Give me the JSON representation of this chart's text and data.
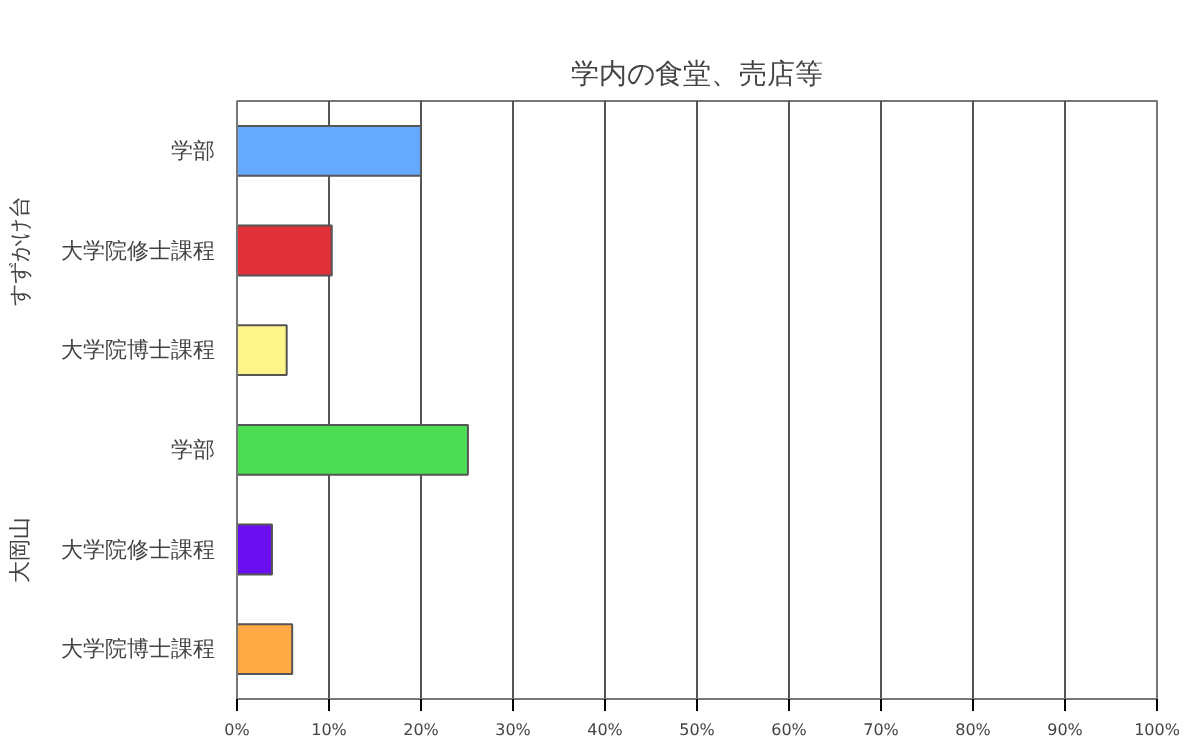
{
  "chart_data": {
    "type": "bar",
    "orientation": "horizontal",
    "title": "学内の食堂、売店等",
    "categories": [
      "学部",
      "大学院修士課程",
      "大学院博士課程",
      "学部",
      "大学院修士課程",
      "大学院博士課程"
    ],
    "values": [
      20.0,
      10.3,
      5.4,
      25.1,
      3.8,
      6.0
    ],
    "colors": [
      "#66aaff",
      "#e0303a",
      "#fff58a",
      "#4ddd55",
      "#6a10f0",
      "#ffaa44"
    ],
    "annotations": [
      "すずかけ台",
      "大岡山"
    ],
    "xlim": [
      0,
      100
    ],
    "xticks": [
      {
        "value": 0,
        "label": "0%"
      },
      {
        "value": 10,
        "label": "10%"
      },
      {
        "value": 20,
        "label": "20%"
      },
      {
        "value": 30,
        "label": "30%"
      },
      {
        "value": 40,
        "label": "40%"
      },
      {
        "value": 50,
        "label": "50%"
      },
      {
        "value": 60,
        "label": "60%"
      },
      {
        "value": 70,
        "label": "70%"
      },
      {
        "value": 80,
        "label": "80%"
      },
      {
        "value": 90,
        "label": "90%"
      },
      {
        "value": 100,
        "label": "100%"
      }
    ],
    "grid": "x"
  }
}
